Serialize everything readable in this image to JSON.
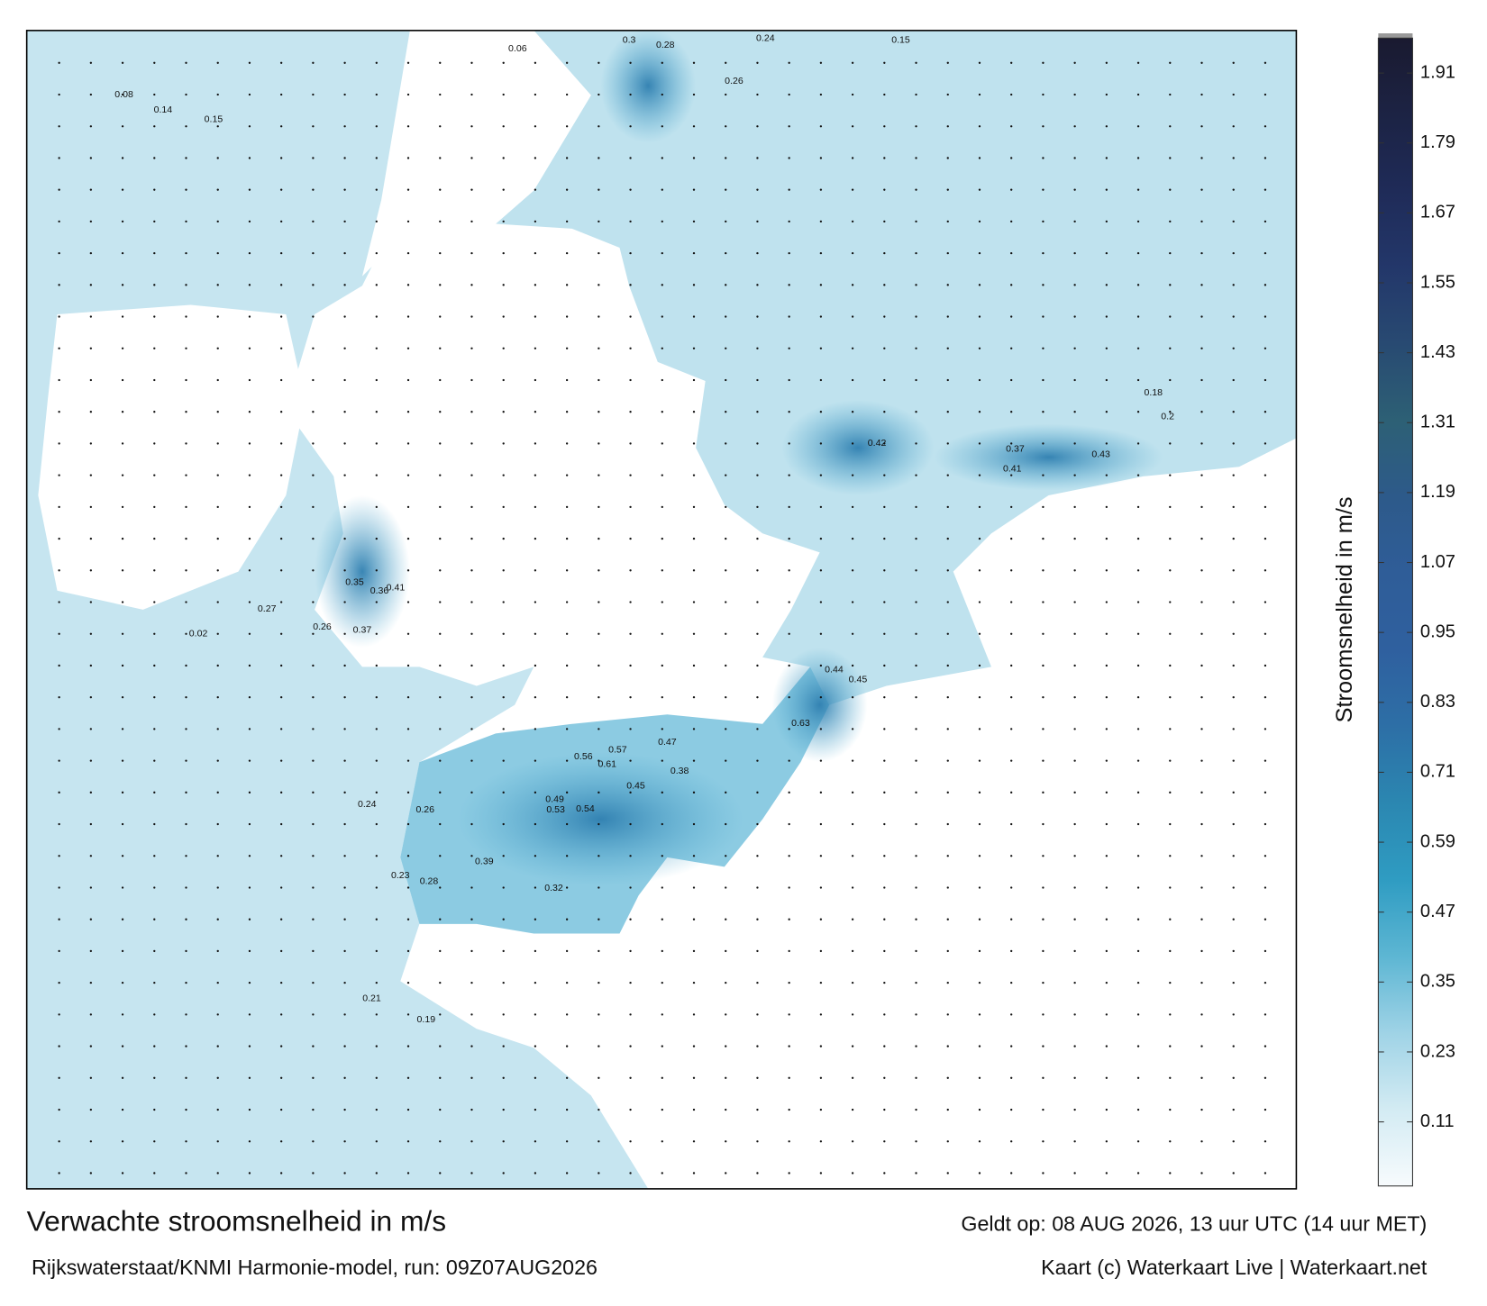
{
  "title": "Verwachte stroomsnelheid in m/s",
  "valid_time": "Geldt op: 08 AUG 2026, 13 uur UTC (14 uur MET)",
  "source": "Rijkswaterstaat/KNMI Harmonie-model, run: 09Z07AUG2026",
  "credit": "Kaart (c) Waterkaart Live | Waterkaart.net",
  "colorbar": {
    "label": "Stroomsnelheid in m/s",
    "lim": [
      0,
      1.97
    ],
    "ticks": [
      0.11,
      0.23,
      0.35,
      0.47,
      0.59,
      0.71,
      0.83,
      0.95,
      1.07,
      1.19,
      1.31,
      1.43,
      1.55,
      1.67,
      1.79,
      1.91
    ],
    "colors": [
      "#f7fbfd",
      "#d3ebf3",
      "#9fd3e6",
      "#5db6d3",
      "#2f9cc2",
      "#2b87b1",
      "#2d6fa6",
      "#2f609f",
      "#2f5d98",
      "#2d5a8a",
      "#2d6075",
      "#284a72",
      "#23376a",
      "#1f2b58",
      "#1c2344",
      "#1a1a30"
    ]
  },
  "speed_labels": [
    0.3,
    0.28,
    0.24,
    0.26,
    0.15,
    0.56,
    0.57,
    0.47,
    0.61,
    0.38,
    0.45,
    0.54,
    0.53,
    0.49,
    0.39,
    0.32,
    0.63,
    0.45,
    0.44,
    0.42,
    0.41,
    0.43,
    0.37,
    0.36,
    0.41,
    0.35,
    0.37,
    0.27,
    0.26,
    0.24,
    0.26,
    0.23,
    0.28,
    0.2,
    0.18,
    0.21,
    0.19,
    0.08,
    0.14,
    0.15,
    0.06,
    0.02
  ]
}
